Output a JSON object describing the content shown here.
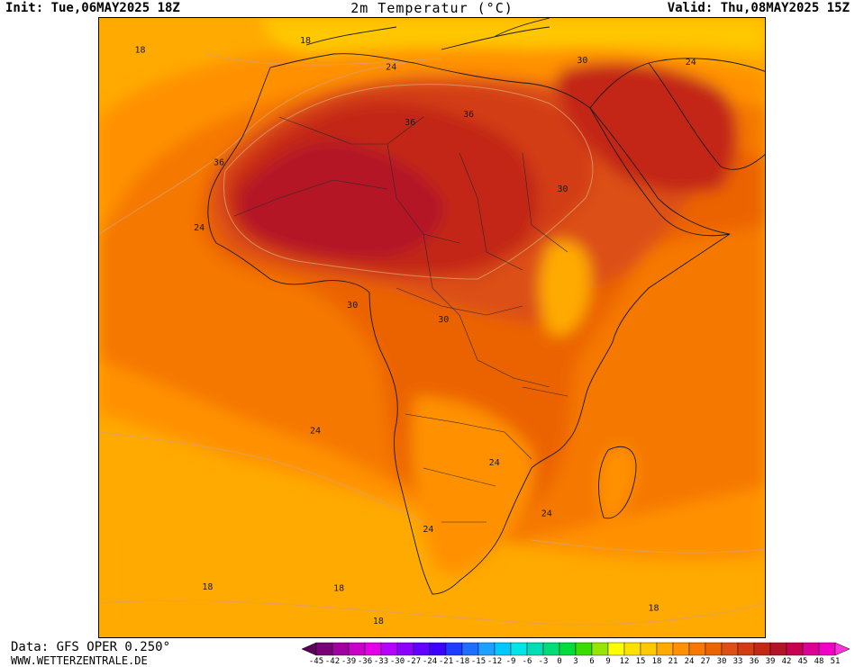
{
  "header": {
    "init": "Init: Tue,06MAY2025 18Z",
    "title": "2m Temperatur (°C)",
    "valid": "Valid: Thu,08MAY2025 15Z"
  },
  "footer": {
    "data_source": "Data: GFS OPER 0.250°",
    "website": "WWW.WETTERZENTRALE.DE"
  },
  "legend": {
    "ticks": [
      "-45",
      "-42",
      "-39",
      "-36",
      "-33",
      "-30",
      "-27",
      "-24",
      "-21",
      "-18",
      "-15",
      "-12",
      "-9",
      "-6",
      "-3",
      "0",
      "3",
      "6",
      "9",
      "12",
      "15",
      "18",
      "21",
      "24",
      "27",
      "30",
      "33",
      "36",
      "39",
      "42",
      "45",
      "48",
      "51"
    ],
    "colors": [
      "#5a005a",
      "#7a007a",
      "#a000a0",
      "#c800c8",
      "#e600e6",
      "#b400ff",
      "#8c00ff",
      "#6400ff",
      "#3c00ff",
      "#1e3cff",
      "#1e6eff",
      "#1ea0ff",
      "#00c8ff",
      "#00e6e6",
      "#00dcb4",
      "#00dc78",
      "#00dc3c",
      "#3cdc00",
      "#96e600",
      "#ffff00",
      "#ffe100",
      "#ffc800",
      "#ffaa00",
      "#ff9100",
      "#f57800",
      "#eb6400",
      "#dc5014",
      "#d23c14",
      "#c32814",
      "#b41428",
      "#c80050",
      "#dc0096",
      "#f000c8",
      "#ff32dc"
    ]
  },
  "map": {
    "contour_labels": [
      {
        "text": "18",
        "lon": -24.6,
        "lat": 35.8
      },
      {
        "text": "18",
        "lon": -2.8,
        "lat": 37.0
      },
      {
        "text": "24",
        "lon": 8.5,
        "lat": 33.5
      },
      {
        "text": "30",
        "lon": 33.7,
        "lat": 34.4
      },
      {
        "text": "24",
        "lon": 48.0,
        "lat": 34.2
      },
      {
        "text": "36",
        "lon": 11.0,
        "lat": 26.2
      },
      {
        "text": "36",
        "lon": 18.7,
        "lat": 27.3
      },
      {
        "text": "36",
        "lon": -14.2,
        "lat": 20.9
      },
      {
        "text": "30",
        "lon": 31.1,
        "lat": 17.4
      },
      {
        "text": "24",
        "lon": -16.8,
        "lat": 12.3
      },
      {
        "text": "30",
        "lon": 3.4,
        "lat": 2.1
      },
      {
        "text": "30",
        "lon": 15.4,
        "lat": 0.2
      },
      {
        "text": "24",
        "lon": -1.5,
        "lat": -14.5
      },
      {
        "text": "24",
        "lon": 22.1,
        "lat": -18.7
      },
      {
        "text": "24",
        "lon": 13.4,
        "lat": -27.5
      },
      {
        "text": "24",
        "lon": 29.0,
        "lat": -25.4
      },
      {
        "text": "18",
        "lon": -15.7,
        "lat": -35.1
      },
      {
        "text": "18",
        "lon": 1.6,
        "lat": -35.3
      },
      {
        "text": "18",
        "lon": 43.1,
        "lat": -37.9
      },
      {
        "text": "18",
        "lon": 6.8,
        "lat": -39.6
      }
    ]
  }
}
